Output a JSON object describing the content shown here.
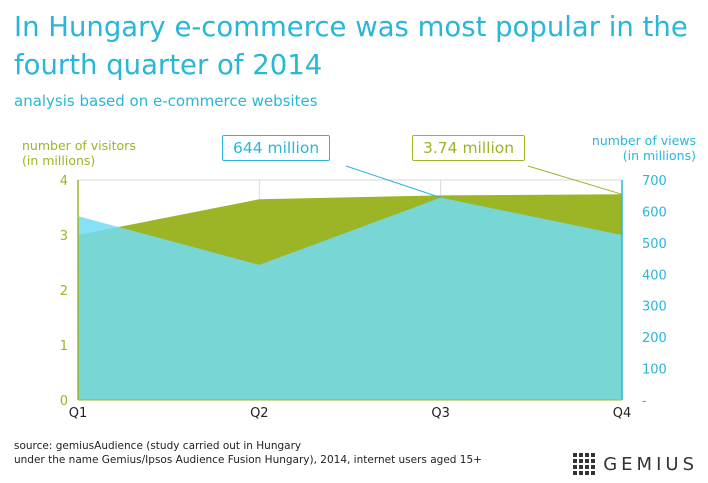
{
  "title": "In Hungary e-commerce was most popular in the fourth quarter of 2014",
  "subtitle": "analysis based on e-commerce websites",
  "callouts": {
    "views": "644 million",
    "visitors": "3.74 million"
  },
  "source_line1": "source: gemiusAudience (study carried out in Hungary",
  "source_line2": "under the name Gemius/Ipsos Audience Fusion Hungary), 2014, internet users aged 15+",
  "logo_text": "GEMIUS",
  "colors": {
    "visitors": "#9cb526",
    "views": "#29b6d8",
    "views_fill": "#66cdd2"
  },
  "chart_data": {
    "type": "area",
    "categories": [
      "Q1",
      "Q2",
      "Q3",
      "Q4"
    ],
    "y_left": {
      "title": [
        "number of visitors",
        "(in millions)"
      ],
      "range": [
        0,
        4
      ],
      "ticks": [
        "0",
        "1",
        "2",
        "3",
        "4"
      ]
    },
    "y_right": {
      "title": [
        "number of views",
        "(in millions)"
      ],
      "range": [
        0,
        700
      ],
      "ticks": [
        "-",
        "100",
        "200",
        "300",
        "400",
        "500",
        "600",
        "700"
      ]
    },
    "series": [
      {
        "axis": "left",
        "values": [
          3.0,
          3.65,
          3.72,
          3.74
        ]
      },
      {
        "axis": "right",
        "values": [
          585,
          430,
          644,
          525
        ]
      }
    ]
  }
}
